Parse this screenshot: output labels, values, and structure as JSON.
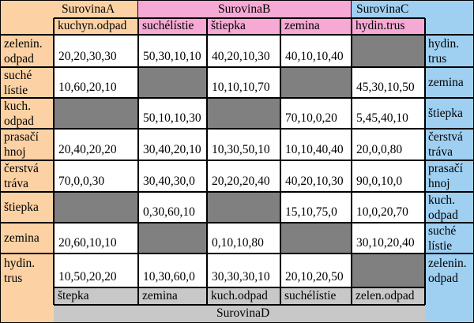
{
  "colors": {
    "orange": "#fcd2a4",
    "pink": "#f5a9d4",
    "blue": "#9fd0f2",
    "gray": "#c8c8c8",
    "white": "#ffffff",
    "dark_cell": "#808080",
    "border": "#000000"
  },
  "headers": {
    "surovinaA": "SurovinaA",
    "surovinaB": "SurovinaB",
    "surovinaC": "SurovinaC",
    "surovinaD": "SurovinaD"
  },
  "top_columns": [
    "kuchyn.odpad",
    "suchélístie",
    "štiepka",
    "zemina",
    "hydin.trus"
  ],
  "bottom_columns": [
    "štepka",
    "zemina",
    "kuch.odpad",
    "suchélístie",
    "zelen.odpad"
  ],
  "left_rows": [
    [
      "zelenin.",
      "odpad"
    ],
    [
      "suché",
      "lístie"
    ],
    [
      "kuch.",
      "odpad"
    ],
    [
      "prasačí",
      "hnoj"
    ],
    [
      "čerstvá",
      "tráva"
    ],
    [
      "štiepka"
    ],
    [
      "zemina"
    ],
    [
      "hydin.",
      "trus"
    ]
  ],
  "right_rows": [
    [
      "hydin.",
      "trus"
    ],
    [
      "zemina"
    ],
    [
      "štiepka"
    ],
    [
      "čerstvá",
      "tráva"
    ],
    [
      "prasačí",
      "hnoj"
    ],
    [
      "kuch.",
      "odpad"
    ],
    [
      "suché",
      "lístie"
    ],
    [
      "zelenin.",
      "odpad"
    ]
  ],
  "cells": [
    [
      "20,20,30,30",
      "50,30,10,10",
      "40,20,10,30",
      "40,10,10,40",
      null
    ],
    [
      "10,60,20,10",
      null,
      "10,10,10,70",
      null,
      "45,30,10,50"
    ],
    [
      null,
      "50,10,10,30",
      null,
      "70,10,0,20",
      "5,45,40,10"
    ],
    [
      "20,40,20,20",
      "30,40,20,10",
      "10,30,50,10",
      "10,10,40,40",
      "20,0,0,80"
    ],
    [
      "70,0,0,30",
      "30,40,30,0",
      "20,20,20,40",
      "40,20,10,30",
      "90,0,10,0"
    ],
    [
      null,
      "0,30,60,10",
      null,
      "15,10,75,0",
      "10,0,20,70"
    ],
    [
      "20,60,10,10",
      null,
      "0,10,10,80",
      null,
      "30,10,20,40"
    ],
    [
      "10,50,20,20",
      "10,30,60,0",
      "30,30,30,10",
      "20,10,20,50",
      null
    ]
  ]
}
